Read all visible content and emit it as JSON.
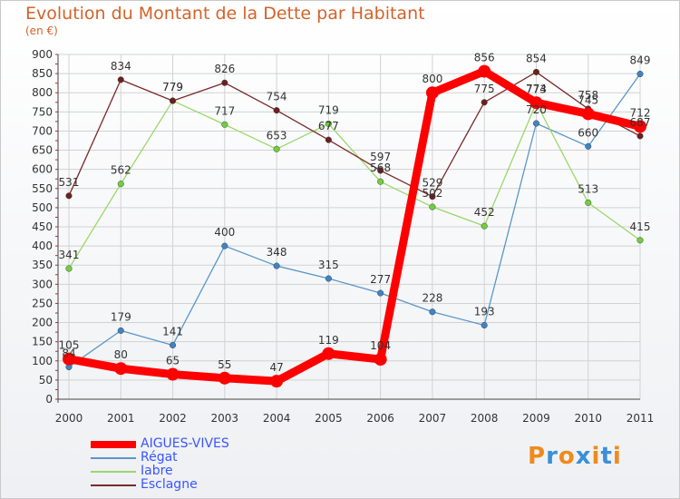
{
  "chart_title": "Evolution du Montant de la Dette par Habitant",
  "chart_subtitle": "(en €)",
  "brand": {
    "letters": [
      "P",
      "r",
      "o",
      "x",
      "i",
      "t",
      "i"
    ],
    "colors": [
      "#f08a1c",
      "#3a8fd9",
      "#f08a1c",
      "#3a8fd9",
      "#f08a1c",
      "#3a8fd9",
      "#f08a1c"
    ]
  },
  "chart_data": {
    "type": "line",
    "title": "Evolution du Montant de la Dette par Habitant",
    "subtitle": "(en €)",
    "x": [
      "2000",
      "2001",
      "2002",
      "2003",
      "2004",
      "2005",
      "2006",
      "2007",
      "2008",
      "2009",
      "2010",
      "2011"
    ],
    "ylim": [
      0,
      900
    ],
    "yticks": [
      0,
      50,
      100,
      150,
      200,
      250,
      300,
      350,
      400,
      450,
      500,
      550,
      600,
      650,
      700,
      750,
      800,
      850,
      900
    ],
    "grid": true,
    "legend_position": "bottom-left",
    "series": [
      {
        "name": "Régat",
        "color": "#5a96c8",
        "point_color": "#3e84c4",
        "width": 1.3,
        "values": [
          84,
          179,
          141,
          400,
          348,
          315,
          277,
          228,
          193,
          720,
          660,
          849
        ]
      },
      {
        "name": "Iabre",
        "color": "#9ad86a",
        "point_color": "#6fcf3f",
        "width": 1.3,
        "values": [
          341,
          562,
          779,
          717,
          653,
          719,
          568,
          502,
          452,
          773,
          513,
          415
        ]
      },
      {
        "name": "Esclagne",
        "color": "#7a2a2a",
        "point_color": "#6b1f1f",
        "width": 1.3,
        "values": [
          531,
          834,
          779,
          826,
          754,
          677,
          597,
          529,
          775,
          854,
          758,
          687
        ]
      },
      {
        "name": "AIGUES-VIVES",
        "color": "#ff0000",
        "point_color": "#ff0000",
        "width": 9,
        "values": [
          105,
          80,
          65,
          55,
          47,
          119,
          104,
          800,
          856,
          774,
          745,
          712
        ]
      }
    ],
    "legend_order": [
      "AIGUES-VIVES",
      "Régat",
      "Iabre",
      "Esclagne"
    ]
  }
}
